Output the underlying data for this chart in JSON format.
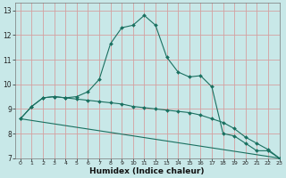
{
  "xlabel": "Humidex (Indice chaleur)",
  "bg_color": "#c8e8e8",
  "grid_color": "#d4a0a0",
  "line_color": "#1a7060",
  "xlim": [
    -0.5,
    23
  ],
  "ylim": [
    7,
    13.3
  ],
  "xticks": [
    0,
    1,
    2,
    3,
    4,
    5,
    6,
    7,
    8,
    9,
    10,
    11,
    12,
    13,
    14,
    15,
    16,
    17,
    18,
    19,
    20,
    21,
    22,
    23
  ],
  "yticks": [
    7,
    8,
    9,
    10,
    11,
    12,
    13
  ],
  "line1_x": [
    0,
    1,
    2,
    3,
    4,
    5,
    6,
    7,
    8,
    9,
    10,
    11,
    12,
    13,
    14,
    15,
    16,
    17,
    18,
    19,
    20,
    21,
    22,
    23
  ],
  "line1_y": [
    8.6,
    9.1,
    9.45,
    9.5,
    9.45,
    9.4,
    9.35,
    9.3,
    9.25,
    9.2,
    9.1,
    9.05,
    9.0,
    8.95,
    8.9,
    8.85,
    8.75,
    8.6,
    8.45,
    8.2,
    7.85,
    7.6,
    7.35,
    7.0
  ],
  "line2_x": [
    0,
    1,
    2,
    3,
    4,
    5,
    6,
    7,
    8,
    9,
    10,
    11,
    12,
    13,
    14,
    15,
    16,
    17,
    18,
    19,
    20,
    21,
    22,
    23
  ],
  "line2_y": [
    8.6,
    9.1,
    9.45,
    9.5,
    9.45,
    9.5,
    9.7,
    10.2,
    11.65,
    12.3,
    12.4,
    12.8,
    12.4,
    11.1,
    10.5,
    10.3,
    10.35,
    9.9,
    8.0,
    7.9,
    7.6,
    7.3,
    7.3,
    7.0
  ],
  "line3_x": [
    0,
    23
  ],
  "line3_y": [
    8.6,
    7.0
  ]
}
